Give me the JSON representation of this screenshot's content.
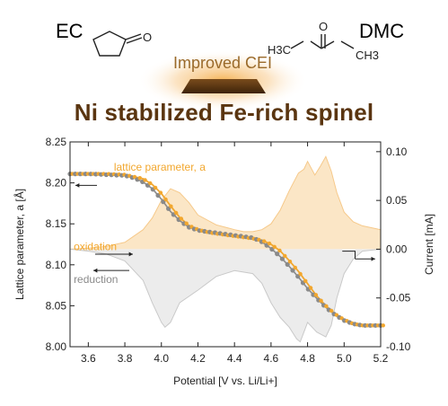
{
  "molecules": {
    "left_label": "EC",
    "right_label": "DMC",
    "dmc_formula_left": "H3C",
    "dmc_formula_right": "CH3",
    "left_carbonyl_o": "O",
    "right_carbonyl_o": "O"
  },
  "cei_label": "Improved CEI",
  "headline": "Ni stabilized Fe-rich spinel",
  "colors": {
    "orange": "#f2a72e",
    "orange_fill": "#fbe6c6",
    "grey": "#8a8a8a",
    "grey_fill": "#ececec",
    "headline": "#5a3510",
    "cei_bar": "#5a3510"
  },
  "chart_data": {
    "type": "line",
    "xlabel": "Potential [V vs. Li/Li+]",
    "ylabel_left": "Lattice parameter, a [Å]",
    "ylabel_right": "Current [mA]",
    "xlim": [
      3.5,
      5.2
    ],
    "ylim_left": [
      8.0,
      8.25
    ],
    "ylim_right": [
      -0.1,
      0.11
    ],
    "x_ticks": [
      "3.6",
      "3.8",
      "4.0",
      "4.2",
      "4.4",
      "4.6",
      "4.8",
      "5.0",
      "5.2"
    ],
    "y_left_ticks": [
      "8.00",
      "8.05",
      "8.10",
      "8.15",
      "8.20",
      "8.25"
    ],
    "y_right_ticks": [
      "-0.10",
      "-0.05",
      "0.00",
      "0.05",
      "0.10"
    ],
    "annotations": {
      "lattice": "lattice parameter, a",
      "oxidation": "oxidation",
      "reduction": "reduction"
    },
    "series": [
      {
        "name": "lattice parameter, a (oxidation)",
        "axis": "left",
        "x": [
          3.5,
          3.6,
          3.7,
          3.8,
          3.9,
          3.95,
          4.0,
          4.05,
          4.1,
          4.15,
          4.2,
          4.25,
          4.3,
          4.4,
          4.5,
          4.55,
          4.6,
          4.65,
          4.7,
          4.75,
          4.8,
          4.85,
          4.9,
          4.95,
          5.0,
          5.05,
          5.1,
          5.2
        ],
        "y": [
          8.211,
          8.211,
          8.211,
          8.21,
          8.205,
          8.198,
          8.187,
          8.172,
          8.158,
          8.148,
          8.143,
          8.14,
          8.138,
          8.135,
          8.132,
          8.13,
          8.125,
          8.117,
          8.105,
          8.092,
          8.077,
          8.062,
          8.05,
          8.04,
          8.033,
          8.028,
          8.026,
          8.026
        ]
      },
      {
        "name": "lattice parameter, a (reduction)",
        "axis": "left",
        "x": [
          3.5,
          3.6,
          3.7,
          3.8,
          3.85,
          3.9,
          3.95,
          4.0,
          4.05,
          4.1,
          4.15,
          4.2,
          4.3,
          4.4,
          4.5,
          4.55,
          4.6,
          4.65,
          4.7,
          4.75,
          4.8,
          4.85,
          4.9,
          4.95,
          5.0,
          5.05,
          5.1,
          5.2
        ],
        "y": [
          8.211,
          8.211,
          8.21,
          8.209,
          8.206,
          8.201,
          8.193,
          8.18,
          8.165,
          8.154,
          8.146,
          8.142,
          8.139,
          8.136,
          8.133,
          8.128,
          8.12,
          8.11,
          8.098,
          8.085,
          8.071,
          8.059,
          8.048,
          8.039,
          8.032,
          8.028,
          8.026,
          8.026
        ]
      },
      {
        "name": "current (oxidation)",
        "axis": "right",
        "x": [
          3.5,
          3.6,
          3.7,
          3.8,
          3.9,
          3.95,
          4.0,
          4.05,
          4.1,
          4.15,
          4.2,
          4.3,
          4.4,
          4.45,
          4.5,
          4.55,
          4.6,
          4.65,
          4.7,
          4.75,
          4.78,
          4.8,
          4.84,
          4.87,
          4.9,
          4.93,
          4.96,
          5.0,
          5.05,
          5.1,
          5.2
        ],
        "y": [
          0.0,
          0.001,
          0.003,
          0.007,
          0.02,
          0.032,
          0.05,
          0.062,
          0.058,
          0.048,
          0.035,
          0.025,
          0.02,
          0.018,
          0.018,
          0.02,
          0.026,
          0.04,
          0.06,
          0.078,
          0.082,
          0.09,
          0.076,
          0.085,
          0.095,
          0.08,
          0.058,
          0.038,
          0.028,
          0.024,
          0.02
        ]
      },
      {
        "name": "current (reduction)",
        "axis": "right",
        "x": [
          3.5,
          3.6,
          3.7,
          3.8,
          3.9,
          3.95,
          4.0,
          4.02,
          4.05,
          4.1,
          4.2,
          4.3,
          4.4,
          4.5,
          4.55,
          4.6,
          4.65,
          4.7,
          4.74,
          4.76,
          4.8,
          4.85,
          4.9,
          4.93,
          4.96,
          5.0,
          5.05,
          5.1,
          5.2
        ],
        "y": [
          0.0,
          -0.002,
          -0.005,
          -0.012,
          -0.032,
          -0.055,
          -0.075,
          -0.08,
          -0.075,
          -0.055,
          -0.042,
          -0.028,
          -0.022,
          -0.025,
          -0.035,
          -0.055,
          -0.07,
          -0.08,
          -0.092,
          -0.095,
          -0.075,
          -0.085,
          -0.09,
          -0.078,
          -0.05,
          -0.025,
          -0.01,
          -0.002,
          0.0
        ]
      }
    ]
  }
}
